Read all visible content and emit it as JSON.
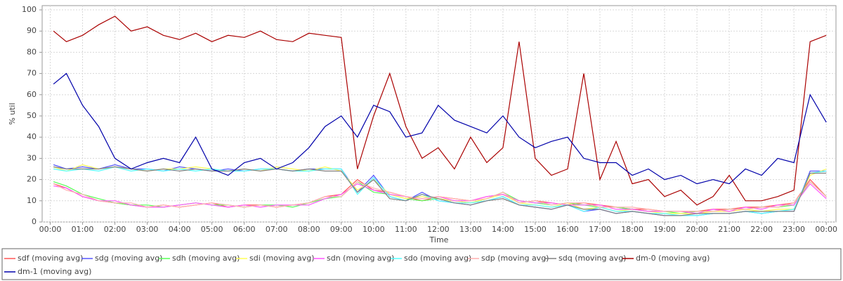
{
  "chart_data": {
    "type": "line",
    "xlabel": "Time",
    "ylabel": "% util",
    "x": [
      0.1,
      0.5,
      1,
      1.5,
      2,
      2.5,
      3,
      3.5,
      4,
      4.5,
      5,
      5.5,
      6,
      6.5,
      7,
      7.5,
      8,
      8.5,
      9,
      9.5,
      10,
      10.5,
      11,
      11.5,
      12,
      12.5,
      13,
      13.5,
      14,
      14.5,
      15,
      15.5,
      16,
      16.5,
      17,
      17.5,
      18,
      18.5,
      19,
      19.5,
      20,
      20.5,
      21,
      21.5,
      22,
      22.5,
      23,
      23.5,
      24
    ],
    "xlim": [
      -0.25,
      24.3
    ],
    "xticks": [
      {
        "value": 0,
        "label": "00:00"
      },
      {
        "value": 1,
        "label": "01:00"
      },
      {
        "value": 2,
        "label": "02:00"
      },
      {
        "value": 3,
        "label": "03:00"
      },
      {
        "value": 4,
        "label": "04:00"
      },
      {
        "value": 5,
        "label": "05:00"
      },
      {
        "value": 6,
        "label": "06:00"
      },
      {
        "value": 7,
        "label": "07:00"
      },
      {
        "value": 8,
        "label": "08:00"
      },
      {
        "value": 9,
        "label": "09:00"
      },
      {
        "value": 10,
        "label": "10:00"
      },
      {
        "value": 11,
        "label": "11:00"
      },
      {
        "value": 12,
        "label": "12:00"
      },
      {
        "value": 13,
        "label": "13:00"
      },
      {
        "value": 14,
        "label": "14:00"
      },
      {
        "value": 15,
        "label": "15:00"
      },
      {
        "value": 16,
        "label": "16:00"
      },
      {
        "value": 17,
        "label": "17:00"
      },
      {
        "value": 18,
        "label": "18:00"
      },
      {
        "value": 19,
        "label": "19:00"
      },
      {
        "value": 20,
        "label": "20:00"
      },
      {
        "value": 21,
        "label": "21:00"
      },
      {
        "value": 22,
        "label": "22:00"
      },
      {
        "value": 23,
        "label": "23:00"
      },
      {
        "value": 24,
        "label": "00:00"
      }
    ],
    "ylim": [
      0,
      102
    ],
    "yticks": [
      0,
      10,
      20,
      30,
      40,
      50,
      60,
      70,
      80,
      90,
      100
    ],
    "grid": true,
    "legend": "bottom",
    "series": [
      {
        "name": "sdf (moving avg)",
        "color": "#ff5555",
        "values": [
          18,
          16,
          12,
          10,
          9,
          8,
          7,
          8,
          7,
          8,
          9,
          7,
          8,
          8,
          7,
          8,
          9,
          12,
          13,
          20,
          15,
          14,
          12,
          10,
          12,
          11,
          10,
          12,
          13,
          9,
          10,
          9,
          8,
          9,
          8,
          7,
          6,
          6,
          5,
          5,
          5,
          6,
          6,
          7,
          7,
          8,
          9,
          20,
          12
        ]
      },
      {
        "name": "sdg (moving avg)",
        "color": "#5555ff",
        "values": [
          27,
          25,
          26,
          25,
          27,
          25,
          25,
          24,
          26,
          25,
          24,
          25,
          24,
          25,
          25,
          24,
          25,
          25,
          25,
          14,
          22,
          12,
          10,
          14,
          10,
          9,
          8,
          10,
          12,
          8,
          7,
          6,
          8,
          5,
          6,
          4,
          5,
          4,
          3,
          3,
          3,
          4,
          4,
          5,
          4,
          5,
          5,
          24,
          24
        ]
      },
      {
        "name": "sdh (moving avg)",
        "color": "#55ff55",
        "values": [
          19,
          17,
          13,
          11,
          9,
          8,
          8,
          7,
          8,
          9,
          8,
          8,
          7,
          8,
          8,
          7,
          9,
          11,
          12,
          19,
          14,
          13,
          11,
          10,
          11,
          10,
          9,
          11,
          14,
          10,
          9,
          8,
          9,
          8,
          7,
          7,
          6,
          5,
          5,
          4,
          5,
          5,
          6,
          6,
          7,
          7,
          8,
          19,
          12
        ]
      },
      {
        "name": "sdi (moving avg)",
        "color": "#ffff55",
        "values": [
          26,
          24,
          27,
          25,
          26,
          25,
          24,
          25,
          25,
          26,
          25,
          24,
          25,
          24,
          26,
          25,
          24,
          26,
          24,
          15,
          20,
          13,
          11,
          12,
          11,
          10,
          9,
          11,
          13,
          9,
          8,
          7,
          9,
          6,
          7,
          5,
          6,
          5,
          4,
          4,
          4,
          5,
          5,
          6,
          5,
          6,
          6,
          22,
          25
        ]
      },
      {
        "name": "sdn (moving avg)",
        "color": "#ff55ff",
        "values": [
          17,
          16,
          12,
          10,
          10,
          8,
          7,
          7,
          8,
          9,
          8,
          7,
          8,
          7,
          8,
          8,
          8,
          11,
          13,
          18,
          15,
          13,
          12,
          11,
          12,
          10,
          10,
          12,
          13,
          10,
          9,
          9,
          8,
          8,
          8,
          6,
          6,
          5,
          5,
          5,
          4,
          6,
          5,
          7,
          6,
          8,
          8,
          18,
          11
        ]
      },
      {
        "name": "sdo (moving avg)",
        "color": "#55ffff",
        "values": [
          25,
          24,
          25,
          24,
          26,
          24,
          25,
          24,
          25,
          24,
          25,
          24,
          24,
          25,
          25,
          24,
          24,
          25,
          25,
          13,
          21,
          12,
          10,
          13,
          10,
          9,
          9,
          10,
          12,
          8,
          8,
          7,
          8,
          5,
          7,
          5,
          5,
          4,
          4,
          3,
          3,
          4,
          4,
          5,
          4,
          5,
          6,
          23,
          24
        ]
      },
      {
        "name": "sdp (moving avg)",
        "color": "#ffafaf",
        "values": [
          18,
          15,
          13,
          10,
          9,
          9,
          7,
          8,
          7,
          8,
          9,
          8,
          7,
          8,
          7,
          8,
          9,
          12,
          12,
          19,
          16,
          14,
          12,
          11,
          12,
          11,
          10,
          11,
          14,
          9,
          10,
          8,
          9,
          9,
          7,
          7,
          7,
          6,
          5,
          5,
          5,
          5,
          6,
          6,
          7,
          7,
          9,
          19,
          12
        ]
      },
      {
        "name": "sdq (moving avg)",
        "color": "#808080",
        "values": [
          26,
          25,
          25,
          25,
          26,
          25,
          24,
          25,
          24,
          25,
          24,
          24,
          25,
          24,
          25,
          24,
          25,
          24,
          24,
          14,
          20,
          11,
          10,
          13,
          11,
          9,
          8,
          10,
          11,
          8,
          7,
          6,
          8,
          6,
          6,
          4,
          5,
          4,
          3,
          3,
          4,
          4,
          4,
          5,
          5,
          5,
          5,
          23,
          23
        ]
      },
      {
        "name": "dm-0 (moving avg)",
        "color": "#aa0000",
        "values": [
          90,
          85,
          88,
          93,
          97,
          90,
          92,
          88,
          86,
          89,
          85,
          88,
          87,
          90,
          86,
          85,
          89,
          88,
          87,
          25,
          50,
          70,
          45,
          30,
          35,
          25,
          40,
          28,
          35,
          85,
          30,
          22,
          25,
          70,
          20,
          38,
          18,
          20,
          12,
          15,
          8,
          12,
          22,
          10,
          10,
          12,
          15,
          85,
          88
        ]
      },
      {
        "name": "dm-1 (moving avg)",
        "color": "#0000aa",
        "values": [
          65,
          70,
          55,
          45,
          30,
          25,
          28,
          30,
          28,
          40,
          25,
          22,
          28,
          30,
          25,
          28,
          35,
          45,
          50,
          40,
          55,
          52,
          40,
          42,
          55,
          48,
          45,
          42,
          50,
          40,
          35,
          38,
          40,
          30,
          28,
          28,
          22,
          25,
          20,
          22,
          18,
          20,
          18,
          25,
          22,
          30,
          28,
          60,
          47
        ]
      }
    ]
  }
}
